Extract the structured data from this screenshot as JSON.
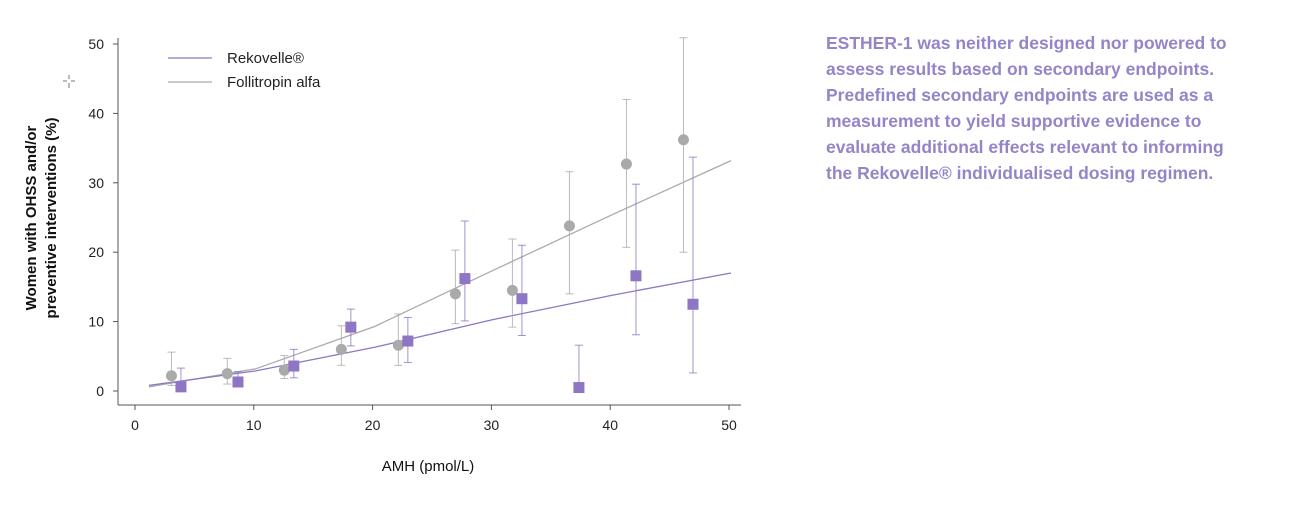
{
  "chart_data": {
    "type": "scatter",
    "xlabel": "AMH (pmol/L)",
    "ylabel_lines": [
      "Women with OHSS and/or",
      "preventive interventions (%)"
    ],
    "xlim": [
      0,
      50
    ],
    "ylim": [
      0,
      50
    ],
    "xticks": [
      0,
      10,
      20,
      30,
      40,
      50
    ],
    "yticks": [
      0,
      10,
      20,
      30,
      40,
      50
    ],
    "grid": false,
    "legend_position": "top-left",
    "series": [
      {
        "name": "Rekovelle®",
        "color": "#8e76c4",
        "marker": "square",
        "points": [
          {
            "x": 3.7,
            "y": 0.6,
            "lo": 0.1,
            "hi": 3.3
          },
          {
            "x": 8.5,
            "y": 1.3,
            "lo": 0.6,
            "hi": 2.8
          },
          {
            "x": 13.2,
            "y": 3.6,
            "lo": 1.9,
            "hi": 6.0
          },
          {
            "x": 18.0,
            "y": 9.2,
            "lo": 6.5,
            "hi": 11.8
          },
          {
            "x": 22.8,
            "y": 7.2,
            "lo": 4.1,
            "hi": 10.6
          },
          {
            "x": 27.6,
            "y": 16.2,
            "lo": 10.1,
            "hi": 24.5
          },
          {
            "x": 32.4,
            "y": 13.3,
            "lo": 8.0,
            "hi": 21.0
          },
          {
            "x": 37.2,
            "y": 0.5,
            "lo": 0.0,
            "hi": 6.6
          },
          {
            "x": 42.0,
            "y": 16.6,
            "lo": 8.1,
            "hi": 29.8
          },
          {
            "x": 46.8,
            "y": 12.5,
            "lo": 2.6,
            "hi": 33.7
          }
        ],
        "fit": [
          [
            1,
            0.8
          ],
          [
            10,
            2.9
          ],
          [
            20,
            6.3
          ],
          [
            30,
            10.3
          ],
          [
            40,
            13.8
          ],
          [
            50,
            17.0
          ]
        ]
      },
      {
        "name": "Follitropin alfa",
        "color": "#aaaaaa",
        "marker": "circle",
        "points": [
          {
            "x": 2.9,
            "y": 2.2,
            "lo": 0.8,
            "hi": 5.6
          },
          {
            "x": 7.6,
            "y": 2.5,
            "lo": 1.0,
            "hi": 4.7
          },
          {
            "x": 12.4,
            "y": 3.0,
            "lo": 1.8,
            "hi": 5.1
          },
          {
            "x": 17.2,
            "y": 6.0,
            "lo": 3.7,
            "hi": 9.4
          },
          {
            "x": 22.0,
            "y": 6.6,
            "lo": 3.7,
            "hi": 11.1
          },
          {
            "x": 26.8,
            "y": 14.0,
            "lo": 9.7,
            "hi": 20.3
          },
          {
            "x": 31.6,
            "y": 14.5,
            "lo": 9.2,
            "hi": 21.9
          },
          {
            "x": 36.4,
            "y": 23.8,
            "lo": 14.0,
            "hi": 31.6
          },
          {
            "x": 41.2,
            "y": 32.7,
            "lo": 20.7,
            "hi": 42.0
          },
          {
            "x": 46.0,
            "y": 36.2,
            "lo": 20.0,
            "hi": 50.9
          }
        ],
        "fit": [
          [
            1,
            0.6
          ],
          [
            10,
            3.2
          ],
          [
            20,
            9.3
          ],
          [
            30,
            17.4
          ],
          [
            40,
            25.4
          ],
          [
            50,
            33.2
          ]
        ]
      }
    ]
  },
  "side_note": {
    "color": "#9484c8",
    "lines": [
      "ESTHER-1 was neither designed nor powered to",
      "assess results based on secondary endpoints.",
      "Predefined secondary endpoints are used as a",
      "measurement to yield supportive evidence to",
      "evaluate additional effects relevant to informing",
      "the Rekovelle® individualised dosing regimen."
    ]
  }
}
